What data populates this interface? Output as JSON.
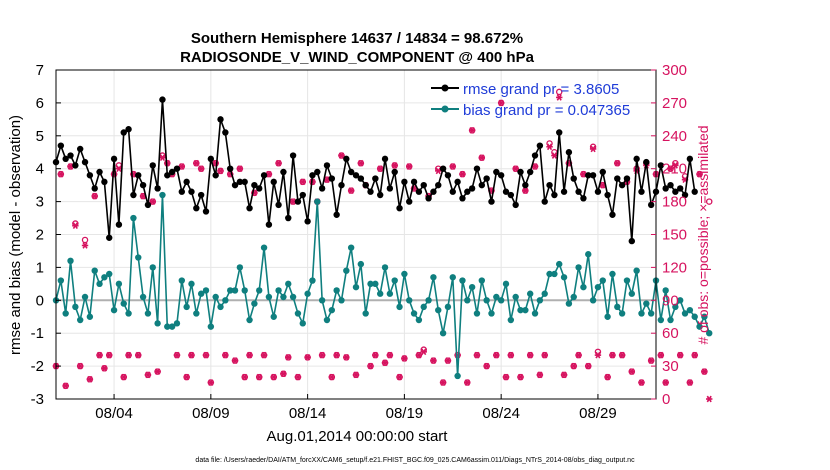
{
  "chart_data": {
    "type": "line",
    "title_line1": "Southern Hemisphere 14637 / 14834 = 98.672%",
    "title_line2": "RADIOSONDE_V_WIND_COMPONENT @ 400 hPa",
    "ylabel": "rmse and bias (model - observation)",
    "y2label": "# of obs: o=possible; ×=assimilated",
    "xlabel": "Aug.01,2014 00:00:00 start",
    "footnote": "data file: /Users/raeder/DAI/ATM_forcXX/CAM6_setup/f.e21.FHIST_BGC.f09_025.CAM6assim.011/Diags_NTrS_2014-08/obs_diag_output.nc",
    "ylim": [
      -3,
      7
    ],
    "y2lim": [
      0,
      300
    ],
    "xlim": [
      1,
      32
    ],
    "yticks": [
      "-3",
      "-2",
      "-1",
      "0",
      "1",
      "2",
      "3",
      "4",
      "5",
      "6",
      "7"
    ],
    "y2ticks": [
      "0",
      "30",
      "60",
      "90",
      "120",
      "150",
      "180",
      "210",
      "240",
      "270",
      "300"
    ],
    "xticks": [
      {
        "x": 4,
        "label": "08/04"
      },
      {
        "x": 9,
        "label": "08/09"
      },
      {
        "x": 14,
        "label": "08/14"
      },
      {
        "x": 19,
        "label": "08/19"
      },
      {
        "x": 24,
        "label": "08/24"
      },
      {
        "x": 29,
        "label": "08/29"
      }
    ],
    "x_start": 1.0,
    "x_step": 0.25,
    "series": [
      {
        "name": "rmse",
        "legend": "rmse grand pr = 3.8605",
        "color": "#000000",
        "values": [
          4.2,
          4.7,
          4.3,
          4.4,
          4.1,
          4.6,
          4.2,
          3.8,
          3.4,
          3.9,
          3.6,
          1.9,
          4.3,
          2.3,
          5.1,
          5.2,
          3.2,
          3.8,
          3.5,
          2.9,
          4.1,
          3.4,
          6.1,
          3.8,
          3.9,
          4.0,
          3.3,
          3.6,
          3.3,
          2.8,
          3.2,
          2.7,
          4.3,
          3.8,
          5.5,
          5.1,
          4.0,
          3.5,
          3.6,
          3.6,
          2.8,
          3.5,
          3.4,
          3.8,
          2.3,
          3.6,
          2.9,
          3.9,
          2.5,
          4.4,
          3.0,
          3.2,
          2.4,
          3.8,
          3.9,
          3.4,
          4.1,
          3.7,
          2.6,
          3.5,
          4.3,
          3.9,
          3.8,
          3.7,
          3.5,
          3.3,
          3.7,
          3.2,
          4.3,
          3.4,
          3.9,
          2.8,
          3.6,
          3.0,
          3.6,
          3.3,
          3.5,
          3.1,
          3.3,
          3.5,
          4.0,
          3.8,
          3.3,
          3.6,
          3.1,
          3.3,
          3.4,
          4.0,
          3.5,
          3.7,
          3.0,
          3.9,
          3.8,
          3.3,
          3.2,
          2.9,
          3.9,
          3.5,
          3.9,
          4.4,
          4.7,
          3.0,
          3.5,
          3.2,
          5.1,
          3.3,
          4.5,
          3.7,
          3.3,
          3.1,
          3.8,
          3.8,
          3.3,
          3.9,
          3.2,
          2.6,
          3.7,
          3.5,
          3.7,
          1.8,
          4.3,
          3.3,
          4.2,
          2.9,
          3.3,
          4.1,
          3.4,
          3.5,
          3.3,
          3.4,
          3.2,
          4.3,
          3.3
        ],
        "show_line": true
      },
      {
        "name": "bias",
        "legend": "bias grand pr = 0.047365",
        "color": "#0f7f7f",
        "values": [
          0.0,
          0.6,
          -0.4,
          1.2,
          -0.2,
          -0.6,
          0.1,
          -0.5,
          0.9,
          0.5,
          0.7,
          0.8,
          -0.3,
          0.5,
          -0.1,
          -0.4,
          2.5,
          1.3,
          0.1,
          -0.4,
          1.0,
          -0.7,
          3.2,
          -0.8,
          -0.8,
          -0.7,
          0.6,
          -0.2,
          0.5,
          -0.4,
          0.2,
          0.3,
          -0.8,
          0.1,
          -0.2,
          0.0,
          0.3,
          0.3,
          1.0,
          0.3,
          -0.6,
          -0.1,
          0.3,
          1.6,
          0.1,
          -0.5,
          0.3,
          0.1,
          0.5,
          0.1,
          -0.4,
          -0.7,
          0.2,
          0.6,
          3.0,
          0.0,
          -0.6,
          -0.3,
          0.3,
          0.0,
          0.9,
          1.6,
          0.4,
          1.1,
          -0.4,
          0.5,
          0.5,
          0.2,
          1.0,
          0.2,
          0.6,
          -0.2,
          0.8,
          0.0,
          -0.4,
          -0.6,
          -0.2,
          0.0,
          0.7,
          -0.3,
          -1.0,
          -0.2,
          0.7,
          -2.3,
          0.6,
          0.0,
          0.4,
          -0.4,
          0.6,
          0.0,
          -0.4,
          0.1,
          0.0,
          0.5,
          -0.6,
          0.1,
          -0.3,
          -0.3,
          0.2,
          -0.4,
          0.0,
          0.2,
          0.8,
          0.8,
          1.1,
          0.7,
          -0.1,
          0.1,
          1.0,
          0.4,
          1.4,
          0.0,
          0.4,
          0.6,
          -0.5,
          0.8,
          -0.2,
          -0.4,
          0.6,
          0.2,
          0.9,
          -0.4,
          -0.1,
          -0.4,
          0.6,
          -0.6,
          0.3,
          -0.6,
          -0.2,
          0.0,
          -0.4,
          -0.3,
          -0.5,
          -0.8,
          -0.5,
          -1.0
        ],
        "show_line": true
      },
      {
        "name": "obs_possible",
        "axis": "right",
        "color": "#d6135f",
        "values": [
          30,
          205,
          12,
          212,
          160,
          30,
          145,
          18,
          185,
          40,
          28,
          40,
          205,
          213,
          20,
          40,
          205,
          40,
          185,
          22,
          180,
          25,
          222,
          215,
          205,
          40,
          212,
          20,
          40,
          215,
          210,
          40,
          15,
          215,
          208,
          40,
          205,
          35,
          210,
          20,
          40,
          188,
          20,
          40,
          205,
          20,
          215,
          23,
          38,
          180,
          20,
          198,
          38,
          198,
          180,
          40,
          200,
          20,
          40,
          222,
          38,
          190,
          22,
          215,
          195,
          30,
          40,
          210,
          33,
          40,
          213,
          20,
          37,
          212,
          192,
          40,
          45,
          185,
          35,
          210,
          15,
          35,
          212,
          40,
          205,
          15,
          245,
          40,
          220,
          30,
          190,
          40,
          270,
          20,
          40,
          210,
          20,
          190,
          40,
          212,
          22,
          40,
          233,
          225,
          280,
          22,
          215,
          30,
          40,
          205,
          30,
          230,
          43,
          195,
          20,
          40,
          215,
          40,
          198,
          25,
          210,
          15,
          215,
          35,
          205,
          40,
          15,
          210,
          215,
          40,
          203,
          15,
          40,
          205,
          25,
          180
        ],
        "show_line": false
      },
      {
        "name": "obs_assimilated",
        "axis": "right",
        "color": "#d6135f",
        "values": [
          30,
          205,
          12,
          212,
          158,
          30,
          140,
          18,
          185,
          40,
          28,
          40,
          205,
          210,
          20,
          40,
          205,
          40,
          185,
          22,
          180,
          25,
          220,
          215,
          205,
          40,
          212,
          20,
          40,
          215,
          210,
          40,
          15,
          215,
          208,
          40,
          205,
          35,
          210,
          20,
          40,
          188,
          20,
          40,
          205,
          20,
          215,
          23,
          38,
          180,
          20,
          198,
          38,
          198,
          180,
          40,
          200,
          20,
          40,
          222,
          38,
          190,
          22,
          215,
          195,
          30,
          40,
          210,
          33,
          40,
          213,
          20,
          37,
          212,
          192,
          40,
          43,
          185,
          35,
          208,
          15,
          35,
          212,
          40,
          205,
          15,
          245,
          40,
          220,
          30,
          190,
          40,
          270,
          20,
          40,
          210,
          20,
          190,
          40,
          212,
          22,
          40,
          230,
          222,
          275,
          22,
          215,
          30,
          40,
          205,
          30,
          228,
          40,
          195,
          20,
          40,
          215,
          40,
          198,
          25,
          208,
          15,
          213,
          35,
          205,
          40,
          15,
          210,
          213,
          40,
          200,
          15,
          40,
          205,
          25,
          0
        ],
        "show_line": false
      }
    ]
  }
}
